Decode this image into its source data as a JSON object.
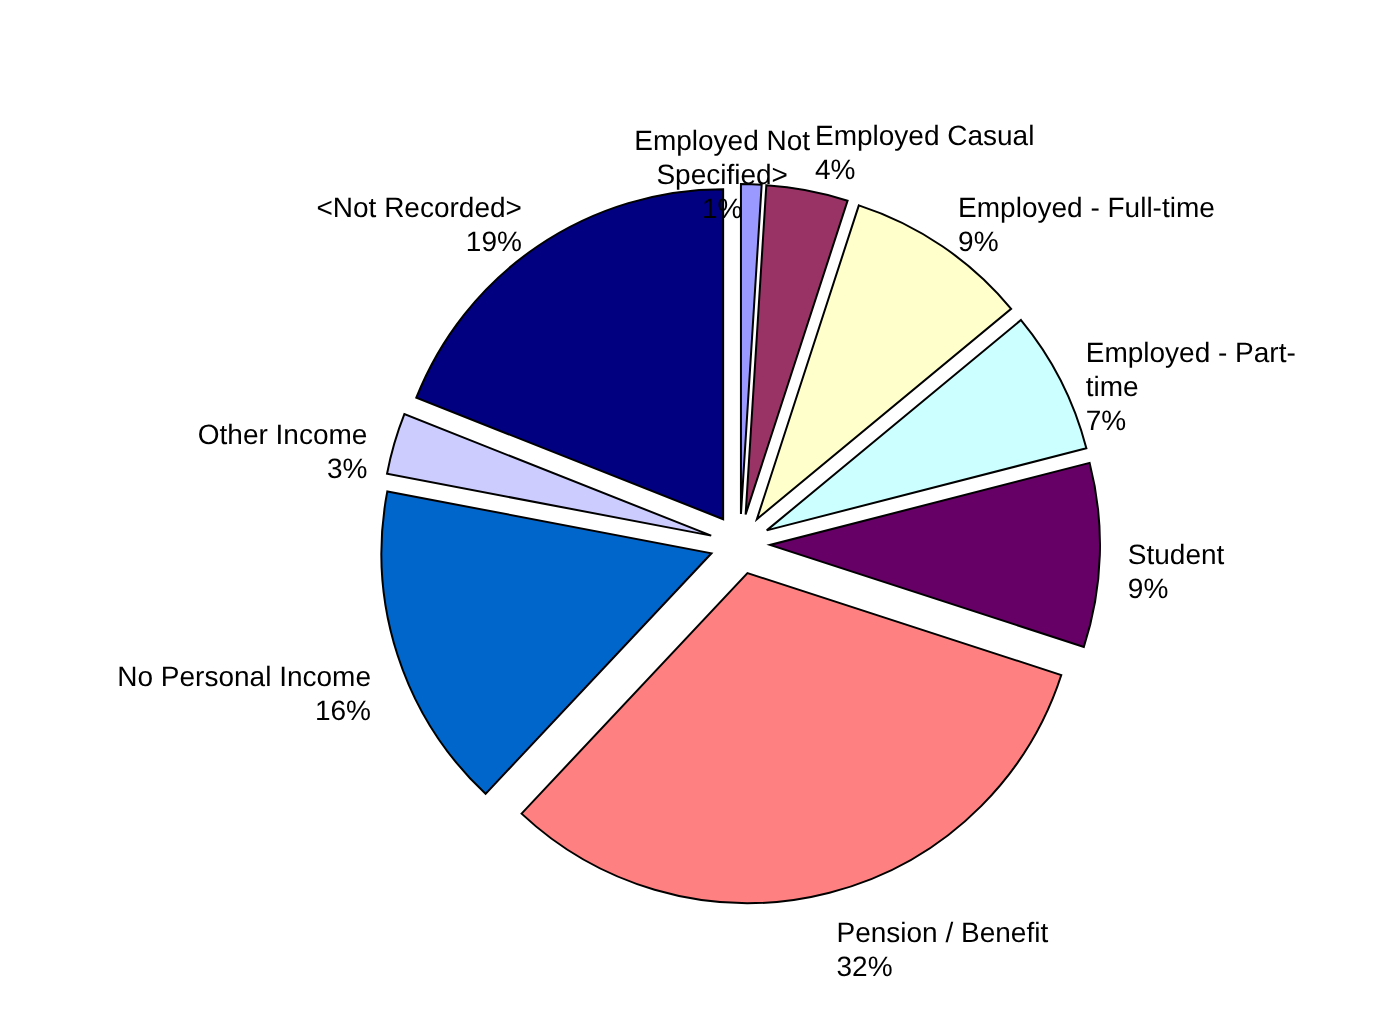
{
  "chart_data": {
    "type": "pie",
    "categories": [
      "Employed Not Specified>",
      "Employed Casual",
      "Employed - Full-time",
      "Employed - Part-time",
      "Student",
      "Pension / Benefit",
      "No Personal Income",
      "Other Income",
      "<Not Recorded>"
    ],
    "values": [
      1,
      4,
      9,
      7,
      9,
      32,
      16,
      3,
      19
    ],
    "value_labels": [
      "1%",
      "4%",
      "9%",
      "7%",
      "9%",
      "32%",
      "16%",
      "3%",
      "19%"
    ],
    "colors": [
      "#9999ff",
      "#993366",
      "#ffffcc",
      "#ccffff",
      "#660066",
      "#ff8080",
      "#0066cc",
      "#ccccff",
      "#000080"
    ]
  }
}
